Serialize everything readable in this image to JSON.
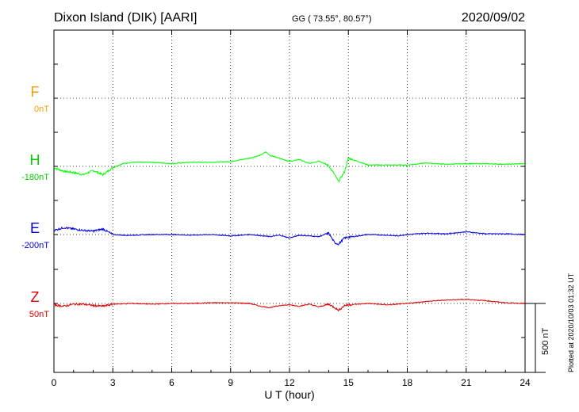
{
  "header": {
    "station": "Dixon Island (DIK)  [AARI]",
    "coords": "GG ( 73.55°,  80.57°)",
    "date": "2020/09/02"
  },
  "components": [
    {
      "letter": "F",
      "baseline": "0nT",
      "color": "#f5a000"
    },
    {
      "letter": "H",
      "baseline": "-180nT",
      "color": "#00d000"
    },
    {
      "letter": "E",
      "baseline": "-200nT",
      "color": "#0000e0"
    },
    {
      "letter": "Z",
      "baseline": "50nT",
      "color": "#e00000"
    }
  ],
  "scale_bar": "500 nT",
  "side_note": "Plotted at 2020/10/03 01:32 UT",
  "chart_data": {
    "type": "line",
    "xlabel": "U T (hour)",
    "xlim": [
      0,
      24
    ],
    "x_ticks": [
      "0",
      "3",
      "6",
      "9",
      "12",
      "15",
      "18",
      "21",
      "24"
    ],
    "grid": true,
    "series": [
      {
        "name": "H",
        "color": "#00ff00",
        "x": [
          0,
          0.5,
          1,
          1.5,
          2,
          2.5,
          3,
          3.5,
          4,
          5,
          6,
          7,
          8,
          9,
          10,
          10.5,
          10.8,
          11,
          11.5,
          12,
          12.5,
          13,
          13.5,
          14,
          14.3,
          14.5,
          14.8,
          15,
          15.5,
          16,
          17,
          18,
          19,
          20,
          21,
          22,
          23,
          24
        ],
        "y": [
          -190,
          -215,
          -225,
          -240,
          -210,
          -240,
          -190,
          -160,
          -150,
          -150,
          -160,
          -150,
          -150,
          -145,
          -120,
          -100,
          -75,
          -100,
          -120,
          -145,
          -130,
          -160,
          -140,
          -175,
          -240,
          -290,
          -220,
          -120,
          -145,
          -170,
          -170,
          -170,
          -155,
          -165,
          -160,
          -160,
          -165,
          -160
        ]
      },
      {
        "name": "E",
        "color": "#0000e0",
        "x": [
          0,
          0.5,
          1,
          1.5,
          2,
          2.5,
          3,
          3.5,
          4,
          5,
          6,
          7,
          8,
          9,
          10,
          11,
          11.5,
          12,
          12.5,
          13,
          13.5,
          14,
          14.3,
          14.5,
          14.8,
          15,
          15.5,
          16,
          17,
          17.5,
          18,
          19,
          20,
          21,
          22,
          23,
          24
        ],
        "y": [
          -170,
          -150,
          -160,
          -170,
          -175,
          -160,
          -200,
          -205,
          -205,
          -200,
          -200,
          -205,
          -200,
          -210,
          -200,
          -215,
          -205,
          -225,
          -205,
          -210,
          -215,
          -190,
          -260,
          -270,
          -225,
          -220,
          -210,
          -200,
          -205,
          -210,
          -200,
          -190,
          -195,
          -180,
          -195,
          -195,
          -200
        ]
      },
      {
        "name": "Z",
        "color": "#e00000",
        "x": [
          0,
          0.5,
          1,
          1.5,
          2,
          2.5,
          3,
          4,
          5,
          6,
          7,
          8,
          9,
          10,
          10.5,
          11,
          11.5,
          12,
          12.5,
          13,
          13.5,
          14,
          14.3,
          14.5,
          14.8,
          15,
          16,
          17,
          18,
          19,
          20,
          21,
          22,
          23,
          24
        ],
        "y": [
          40,
          30,
          45,
          45,
          35,
          30,
          45,
          50,
          45,
          50,
          50,
          55,
          55,
          50,
          30,
          20,
          35,
          40,
          30,
          45,
          25,
          45,
          20,
          0,
          35,
          40,
          50,
          40,
          50,
          65,
          75,
          80,
          70,
          55,
          50
        ]
      }
    ]
  }
}
